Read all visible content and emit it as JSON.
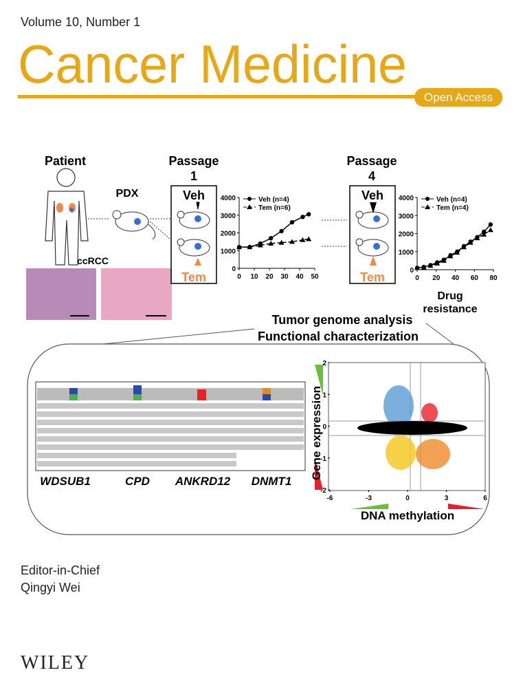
{
  "header": {
    "volume": "Volume 10, Number 1",
    "title": "Cancer Medicine",
    "badge": "Open Access"
  },
  "figure": {
    "patient": "Patient",
    "pdx": "PDX",
    "ccrcc": "ccRCC",
    "passage1": [
      "Passage",
      "1"
    ],
    "passage4": [
      "Passage",
      "4"
    ],
    "veh": "Veh",
    "tem": "Tem",
    "drug_resistance": [
      "Drug",
      "resistance"
    ],
    "analysis": [
      "Tumor genome analysis",
      "Functional characterization"
    ],
    "genes": [
      "WDSUB1",
      "CPD",
      "ANKRD12",
      "DNMT1"
    ]
  },
  "chart_data": [
    {
      "type": "line",
      "x": [
        0,
        7,
        14,
        21,
        28,
        35,
        42,
        46
      ],
      "xlim": [
        0,
        50
      ],
      "xticks": [
        0,
        10,
        20,
        30,
        40,
        50
      ],
      "ylim": [
        0,
        4000
      ],
      "yticks": [
        0,
        1000,
        2000,
        3000,
        4000
      ],
      "series": [
        {
          "name": "Veh (n=4)",
          "color": "#000000",
          "marker": "circle",
          "line_style": "solid",
          "values": [
            1200,
            1200,
            1400,
            1700,
            2100,
            2600,
            2900,
            3050
          ]
        },
        {
          "name": "Tem (n=6)",
          "color": "#000000",
          "marker": "triangle",
          "line_style": "dashed",
          "values": [
            1200,
            1200,
            1300,
            1400,
            1450,
            1500,
            1600,
            1650
          ]
        }
      ]
    },
    {
      "type": "line",
      "x": [
        0,
        7,
        14,
        21,
        28,
        35,
        42,
        49,
        56,
        63,
        70,
        77
      ],
      "xlim": [
        0,
        80
      ],
      "xticks": [
        0,
        20,
        40,
        60,
        80
      ],
      "ylim": [
        0,
        4000
      ],
      "yticks": [
        0,
        1000,
        2000,
        3000,
        4000
      ],
      "series": [
        {
          "name": "Veh (n=4)",
          "color": "#000000",
          "marker": "circle",
          "line_style": "solid",
          "values": [
            100,
            150,
            250,
            400,
            550,
            800,
            1000,
            1300,
            1550,
            1800,
            2100,
            2500
          ]
        },
        {
          "name": "Tem (n=4)",
          "color": "#000000",
          "marker": "triangle",
          "line_style": "dashed",
          "values": [
            100,
            130,
            220,
            350,
            500,
            750,
            950,
            1250,
            1500,
            1750,
            1950,
            2200
          ]
        }
      ]
    },
    {
      "type": "scatter",
      "y_label": "Gene expression",
      "x_label": "DNA methylation",
      "xlim": [
        -6,
        6
      ],
      "xticks": [
        -6,
        -3,
        0,
        3,
        6
      ],
      "ylim": [
        -2,
        2
      ],
      "yticks": [
        -2,
        -1,
        0,
        1,
        2
      ]
    }
  ],
  "footer": {
    "editor_role": "Editor-in-Chief",
    "editor": "Qingyi Wei",
    "publisher": "WILEY"
  }
}
